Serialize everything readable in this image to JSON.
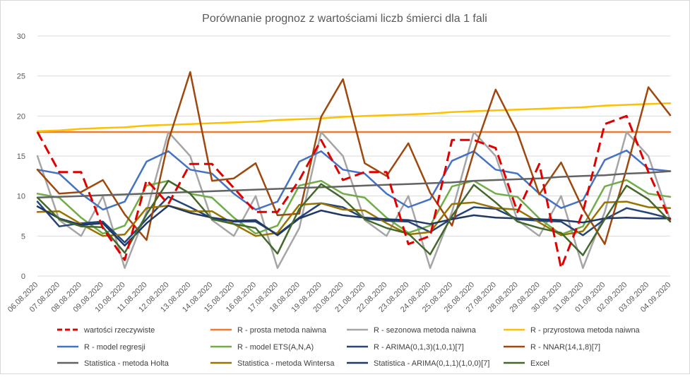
{
  "chart_data": {
    "type": "line",
    "title": "Porównanie prognoz z wartościami liczb śmierci dla 1 fali",
    "xlabel": "",
    "ylabel": "",
    "ylim": [
      0,
      30
    ],
    "yticks": [
      0,
      5,
      10,
      15,
      20,
      25,
      30
    ],
    "grid": true,
    "legend_position": "bottom",
    "x": [
      "06.08.2020",
      "07.08.2020",
      "08.08.2020",
      "09.08.2020",
      "10.08.2020",
      "11.08.2020",
      "12.08.2020",
      "13.08.2020",
      "14.08.2020",
      "15.08.2020",
      "16.08.2020",
      "17.08.2020",
      "18.08.2020",
      "19.08.2020",
      "20.08.2020",
      "21.08.2020",
      "22.08.2020",
      "23.08.2020",
      "24.08.2020",
      "25.08.2020",
      "26.08.2020",
      "27.08.2020",
      "28.08.2020",
      "29.08.2020",
      "30.08.2020",
      "31.08.2020",
      "01.09.2020",
      "02.09.2020",
      "03.09.2020",
      "04.09.2020"
    ],
    "series": [
      {
        "name": "wartości rzeczywiste",
        "color": "#e00000",
        "dash": "dashed",
        "width": 3,
        "values": [
          18,
          13,
          13,
          6,
          2,
          12,
          9,
          14,
          14,
          11,
          8,
          8,
          12,
          17,
          12,
          13,
          13,
          4,
          5,
          17,
          17,
          16,
          8,
          14,
          1,
          8,
          19,
          20,
          13,
          7
        ]
      },
      {
        "name": "R - prosta metoda naiwna",
        "color": "#ed7d31",
        "dash": "solid",
        "width": 2.5,
        "values": [
          18,
          18,
          18,
          18,
          18,
          18,
          18,
          18,
          18,
          18,
          18,
          18,
          18,
          18,
          18,
          18,
          18,
          18,
          18,
          18,
          18,
          18,
          18,
          18,
          18,
          18,
          18,
          18,
          18,
          18
        ]
      },
      {
        "name": "R - sezonowa metoda naiwna",
        "color": "#a5a5a5",
        "dash": "solid",
        "width": 2.5,
        "values": [
          15,
          7,
          5,
          10,
          1,
          8,
          18,
          15,
          7,
          5,
          10,
          1,
          6,
          18,
          15,
          7,
          5,
          10,
          1,
          8,
          18,
          15,
          7,
          5,
          10,
          1,
          8,
          18,
          15,
          7
        ]
      },
      {
        "name": "R - przyrostowa metoda naiwna",
        "color": "#ffc000",
        "dash": "solid",
        "width": 2.5,
        "values": [
          18.1,
          18.2,
          18.4,
          18.5,
          18.6,
          18.8,
          18.9,
          19.0,
          19.1,
          19.2,
          19.3,
          19.5,
          19.6,
          19.7,
          19.9,
          20.0,
          20.1,
          20.2,
          20.3,
          20.5,
          20.6,
          20.7,
          20.8,
          20.9,
          21.0,
          21.1,
          21.3,
          21.4,
          21.5,
          21.6
        ]
      },
      {
        "name": "R - model regresji",
        "color": "#4472c4",
        "dash": "solid",
        "width": 2.5,
        "values": [
          13.3,
          12.8,
          10.3,
          8.3,
          9.3,
          14.3,
          15.6,
          13.3,
          12.8,
          10.3,
          8.3,
          9.3,
          14.3,
          15.6,
          13.3,
          12.8,
          10.3,
          8.6,
          9.6,
          14.4,
          15.6,
          13.3,
          12.8,
          10.3,
          8.5,
          9.5,
          14.5,
          15.7,
          13.4,
          13.1
        ]
      },
      {
        "name": "R - model ETS(A,N,A)",
        "color": "#70ad47",
        "dash": "solid",
        "width": 2.5,
        "values": [
          10.3,
          9.8,
          7.3,
          5.3,
          6.3,
          11.3,
          11.9,
          10.3,
          9.8,
          7.3,
          5.3,
          6.3,
          11.3,
          11.9,
          10.3,
          9.8,
          7.3,
          5.4,
          6.3,
          11.2,
          11.9,
          10.3,
          9.9,
          7.2,
          5.2,
          6.2,
          11.2,
          12.0,
          10.3,
          9.9
        ]
      },
      {
        "name": "R - ARIMA(0,1,3)(1,0,1)[7]",
        "color": "#264478",
        "dash": "solid",
        "width": 2.5,
        "values": [
          9.3,
          6.2,
          6.6,
          6.8,
          4.2,
          7.1,
          9.9,
          8.6,
          7.2,
          6.8,
          6.8,
          5.2,
          7.3,
          9.1,
          8.6,
          7.2,
          6.9,
          6.8,
          5.5,
          7.2,
          8.6,
          8.4,
          7.1,
          6.9,
          6.8,
          5.1,
          7.1,
          8.5,
          7.9,
          7.2
        ]
      },
      {
        "name": "R - NNAR(14,1,8)[7]",
        "color": "#9e480e",
        "dash": "solid",
        "width": 2.5,
        "values": [
          13.3,
          10.3,
          10.5,
          12.0,
          7.7,
          4.5,
          16.9,
          25.5,
          11.9,
          12.2,
          14.1,
          7.6,
          7.8,
          19.9,
          24.6,
          14.1,
          12.5,
          16.6,
          10.4,
          6.3,
          15.5,
          23.3,
          17.9,
          10.2,
          14.2,
          8.4,
          4.0,
          13.4,
          23.6,
          20.1
        ]
      },
      {
        "name": "Statistica - metoda Holta",
        "color": "#636363",
        "dash": "solid",
        "width": 2.5,
        "values": [
          9.8,
          9.9,
          10.0,
          10.1,
          10.2,
          10.3,
          10.4,
          10.5,
          10.6,
          10.7,
          10.8,
          10.9,
          11.0,
          11.1,
          11.2,
          11.3,
          11.4,
          11.5,
          11.6,
          11.7,
          11.9,
          12.0,
          12.1,
          12.2,
          12.4,
          12.5,
          12.6,
          12.8,
          12.9,
          13.1
        ]
      },
      {
        "name": "Statistica - metoda Wintersa",
        "color": "#997300",
        "dash": "solid",
        "width": 2.5,
        "values": [
          8.0,
          8.1,
          6.5,
          5.0,
          5.2,
          8.5,
          8.8,
          8.1,
          8.1,
          6.5,
          5.0,
          5.4,
          8.9,
          9.1,
          8.3,
          8.2,
          6.6,
          5.2,
          5.5,
          9.0,
          9.2,
          8.5,
          8.3,
          6.7,
          5.1,
          5.6,
          9.2,
          9.3,
          8.6,
          8.5
        ]
      },
      {
        "name": "Statistica - ARIMA(0,1,1)(1,0,0)[7]",
        "color": "#203864",
        "dash": "solid",
        "width": 2.5,
        "values": [
          8.7,
          7.2,
          6.4,
          6.6,
          3.8,
          6.6,
          8.8,
          7.9,
          7.3,
          6.9,
          7.0,
          5.1,
          7.2,
          8.2,
          7.6,
          7.3,
          7.1,
          7.0,
          6.5,
          7.1,
          7.6,
          7.3,
          7.2,
          7.1,
          7.0,
          6.7,
          7.2,
          7.3,
          7.2,
          7.2
        ]
      },
      {
        "name": "Excel",
        "color": "#43682b",
        "dash": "solid",
        "width": 2.5,
        "values": [
          9.8,
          7.1,
          6.2,
          6.1,
          2.9,
          7.7,
          11.9,
          10.3,
          7.1,
          6.5,
          6.0,
          2.8,
          8.4,
          11.5,
          9.7,
          7.1,
          6.0,
          5.3,
          2.7,
          7.5,
          11.4,
          9.2,
          6.8,
          6.0,
          5.4,
          2.6,
          7.1,
          11.3,
          9.6,
          6.8
        ]
      }
    ]
  }
}
